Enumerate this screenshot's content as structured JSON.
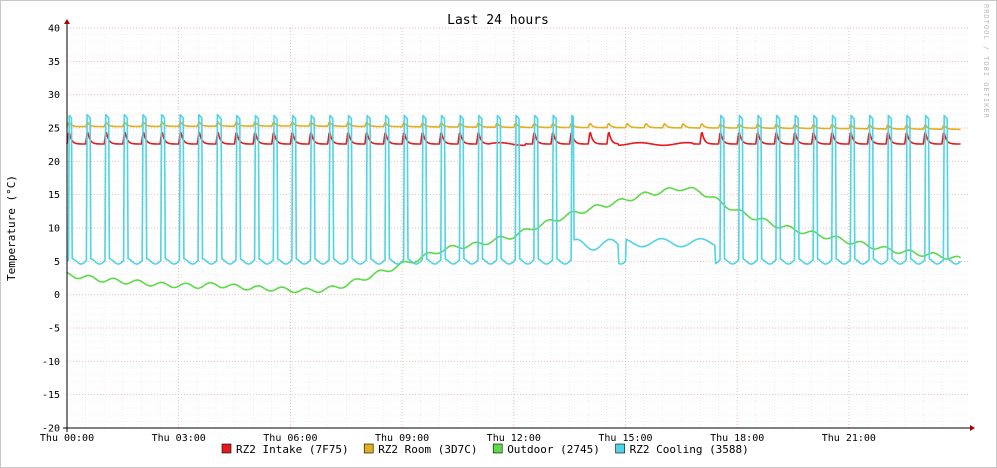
{
  "chart_data": {
    "type": "line",
    "title": "Last 24 hours",
    "ylabel": "Temperature (°C)",
    "watermark": "RRDTOOL / TOBI OETIKER",
    "ylim": [
      -20,
      40
    ],
    "yticks": [
      40,
      35,
      30,
      25,
      20,
      15,
      10,
      5,
      0,
      -5,
      -10,
      -15,
      -20
    ],
    "xlim": [
      0,
      24.2
    ],
    "xticks": [
      {
        "h": 0,
        "label": "Thu 00:00"
      },
      {
        "h": 3,
        "label": "Thu 03:00"
      },
      {
        "h": 6,
        "label": "Thu 06:00"
      },
      {
        "h": 9,
        "label": "Thu 09:00"
      },
      {
        "h": 12,
        "label": "Thu 12:00"
      },
      {
        "h": 15,
        "label": "Thu 15:00"
      },
      {
        "h": 18,
        "label": "Thu 18:00"
      },
      {
        "h": 21,
        "label": "Thu 21:00"
      }
    ],
    "grid": true,
    "legend_position": "bottom",
    "series": [
      {
        "name": "RZ2 Intake (7F75)",
        "color": "#e41a1c",
        "kind": "cycle",
        "base": 22.6,
        "peak": 24.6,
        "dropouts": [
          [
            11.3,
            12.3
          ],
          [
            14.8,
            16.8
          ]
        ],
        "x": [
          0,
          24
        ],
        "y": [
          22.6,
          22.6
        ]
      },
      {
        "name": "RZ2 Room (3D7C)",
        "color": "#e0b020",
        "kind": "cycle",
        "base": 25.2,
        "peak": 25.9,
        "x": [
          0,
          6,
          12,
          18,
          24
        ],
        "y": [
          25.2,
          25.3,
          25.1,
          25.0,
          24.8
        ]
      },
      {
        "name": "Outdoor (2745)",
        "color": "#5ed94a",
        "kind": "line",
        "x": [
          0,
          0.5,
          1,
          1.5,
          2,
          2.5,
          3,
          3.5,
          4,
          4.5,
          5,
          5.5,
          6,
          6.5,
          7,
          7.5,
          8,
          8.5,
          9,
          9.5,
          10,
          10.5,
          11,
          11.5,
          12,
          12.5,
          13,
          13.5,
          14,
          14.5,
          15,
          15.5,
          16,
          16.5,
          17,
          17.5,
          18,
          18.5,
          19,
          19.5,
          20,
          20.5,
          21,
          21.5,
          22,
          22.5,
          23,
          23.5,
          24
        ],
        "y": [
          3,
          2.6,
          2.2,
          2,
          1.8,
          1.5,
          1.4,
          1.3,
          1.5,
          1.2,
          1.0,
          0.9,
          0.7,
          0.6,
          0.8,
          1.5,
          2.5,
          3.5,
          4.5,
          5.5,
          6.6,
          7.2,
          7.5,
          8.2,
          8.8,
          10,
          11,
          12,
          12.8,
          13.5,
          14.2,
          15,
          15.5,
          16,
          15.5,
          14,
          12.5,
          11.5,
          10.5,
          9.8,
          9.2,
          8.6,
          8,
          7.4,
          6.8,
          6.4,
          6.1,
          5.8,
          5.3
        ]
      },
      {
        "name": "RZ2 Cooling (3588)",
        "color": "#4fd3e6",
        "kind": "cycle",
        "base": 5,
        "peak": 27,
        "dropouts": [
          [
            13.6,
            14.8
          ],
          [
            15.0,
            17.4
          ]
        ],
        "x": [
          0,
          24
        ],
        "y": [
          5,
          5
        ]
      }
    ],
    "cycle_period": 0.5
  }
}
